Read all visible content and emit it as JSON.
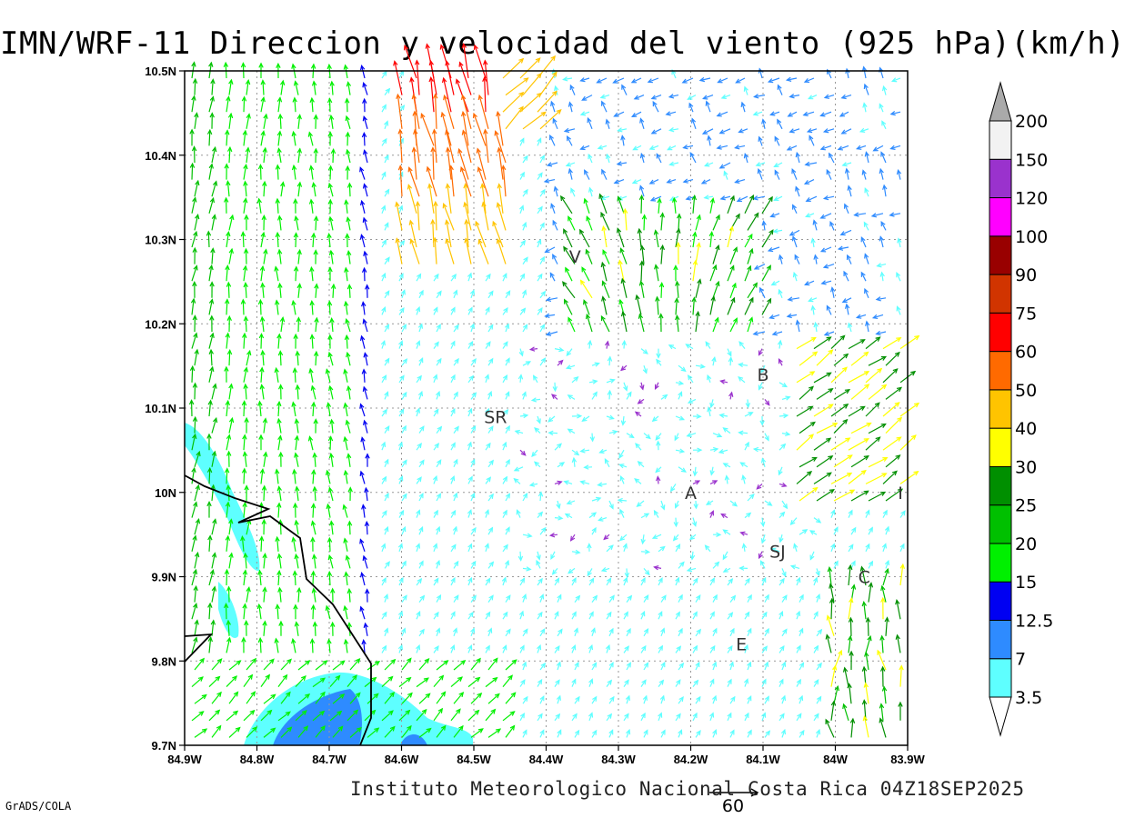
{
  "title": "IMN/WRF-11 Direccion y velocidad del viento (925 hPa)(km/h)",
  "footer": "Instituto Meteorologico Nacional Costa Rica 04Z18SEP2025",
  "credit": "GrADS/COLA",
  "reference_vector": {
    "value": "60"
  },
  "map": {
    "lon_range": [
      -84.9,
      -83.9
    ],
    "lat_range": [
      9.7,
      10.5
    ],
    "x_ticks": [
      "84.9W",
      "84.8W",
      "84.7W",
      "84.6W",
      "84.5W",
      "84.4W",
      "84.3W",
      "84.2W",
      "84.1W",
      "84W",
      "83.9W"
    ],
    "y_ticks": [
      "9.7N",
      "9.8N",
      "9.9N",
      "10N",
      "10.1N",
      "10.2N",
      "10.3N",
      "10.4N",
      "10.5N"
    ],
    "grid": true,
    "coastline": "black",
    "places": [
      {
        "label": "V",
        "lon": -84.36,
        "lat": 10.28
      },
      {
        "label": "SR",
        "lon": -84.47,
        "lat": 10.09
      },
      {
        "label": "B",
        "lon": -84.1,
        "lat": 10.14
      },
      {
        "label": "A",
        "lon": -84.2,
        "lat": 10.0
      },
      {
        "label": "I",
        "lon": -83.91,
        "lat": 10.0
      },
      {
        "label": "SJ",
        "lon": -84.08,
        "lat": 9.93
      },
      {
        "label": "C",
        "lon": -83.96,
        "lat": 9.9
      },
      {
        "label": "E",
        "lon": -84.13,
        "lat": 9.82
      }
    ]
  },
  "colorbar": {
    "levels": [
      "3.5",
      "7",
      "12.5",
      "15",
      "20",
      "25",
      "30",
      "40",
      "50",
      "60",
      "75",
      "90",
      "100",
      "120",
      "150",
      "200"
    ],
    "colors": [
      "#5effff",
      "#2e8bff",
      "#0000f2",
      "#00f000",
      "#00c000",
      "#008f00",
      "#ffff00",
      "#ffc400",
      "#ff6a00",
      "#ff0000",
      "#d13400",
      "#990000",
      "#ff00ff",
      "#9a32cd",
      "#f2f2f2",
      "#aaaaaa"
    ]
  }
}
